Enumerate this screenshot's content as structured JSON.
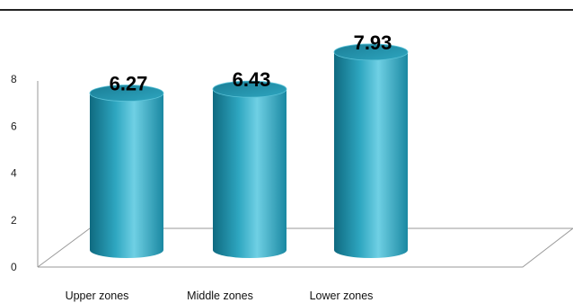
{
  "chart_data": {
    "type": "bar",
    "style": "3d-cylinder",
    "categories": [
      "Upper zones",
      "Middle zones",
      "Lower zones"
    ],
    "values": [
      6.27,
      6.43,
      7.93
    ],
    "data_labels": [
      "6.27",
      "6.43",
      "7.93"
    ],
    "title": "",
    "xlabel": "",
    "ylabel": "",
    "ylim": [
      0,
      8
    ],
    "yticks": [
      "0",
      "2",
      "4",
      "6",
      "8"
    ],
    "grid": false,
    "legend": "none",
    "bar_color": "#2ea6c0",
    "bar_color_dark": "#0f6a80",
    "bar_color_light": "#8fdcec"
  }
}
